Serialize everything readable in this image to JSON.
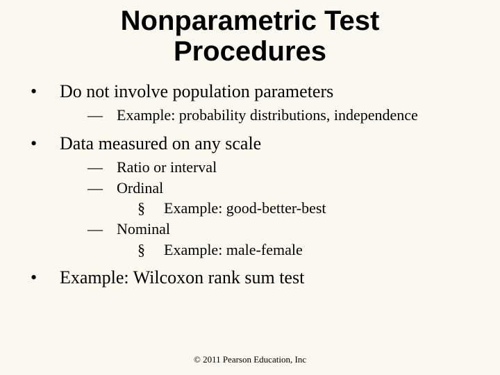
{
  "colors": {
    "background": "#fbf8ef",
    "text": "#000000"
  },
  "fonts": {
    "title_family": "Arial",
    "body_family": "Times New Roman",
    "title_size_pt": 40,
    "lvl1_size_pt": 26,
    "lvl2_size_pt": 22,
    "lvl3_size_pt": 22,
    "footer_size_pt": 13
  },
  "title_line1": "Nonparametric Test",
  "title_line2": "Procedures",
  "bullets": {
    "b1": "Do not involve population parameters",
    "b1_1": "Example: probability distributions, independence",
    "b2": "Data measured on any scale",
    "b2_1": "Ratio or interval",
    "b2_2": "Ordinal",
    "b2_2_1": "Example: good-better-best",
    "b2_3": "Nominal",
    "b2_3_1": "Example: male-female",
    "b3": "Example: Wilcoxon rank sum test"
  },
  "footer": "© 2011 Pearson Education, Inc"
}
